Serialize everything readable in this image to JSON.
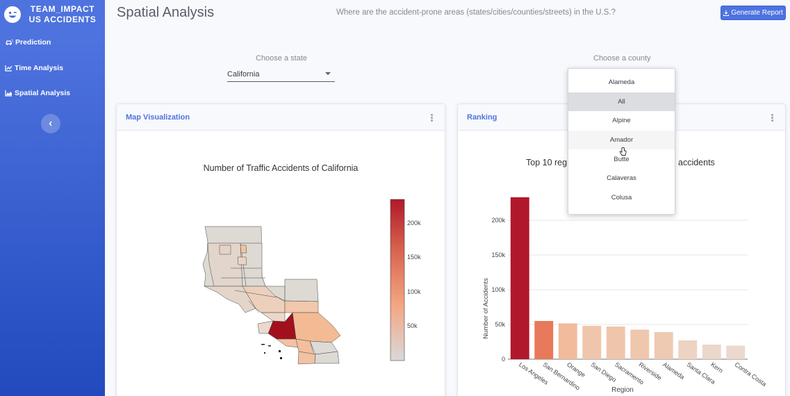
{
  "brand": {
    "line1": "TEAM_IMPACT",
    "line2": "US ACCIDENTS"
  },
  "sidebar": {
    "items": [
      {
        "label": "Prediction"
      },
      {
        "label": "Time Analysis"
      },
      {
        "label": "Spatial Analysis"
      }
    ]
  },
  "header": {
    "title": "Spatial Analysis",
    "question": "Where are the accident-prone areas (states/cities/counties/streets) in the U.S.?",
    "report_button": "Generate Report"
  },
  "state_select": {
    "label": "Choose a state",
    "value": "California"
  },
  "county_select": {
    "label": "Choose a county"
  },
  "county_dropdown": {
    "options": [
      "Alameda",
      "All",
      "Alpine",
      "Amador",
      "Butte",
      "Calaveras",
      "Colusa"
    ],
    "selected": "All",
    "hovered": "Amador"
  },
  "map_card": {
    "title": "Map Visualization",
    "chart_title": "Number of Traffic Accidents of California",
    "colorbar_ticks": [
      "200k",
      "150k",
      "100k",
      "50k"
    ],
    "colorscale": [
      "#d9d9d9",
      "#f4a582",
      "#d6604d",
      "#b2182b"
    ]
  },
  "ranking_card": {
    "title": "Ranking",
    "chart_title_left": "Top 10 reg",
    "chart_title_right": "accidents"
  },
  "chart_data": {
    "type": "bar",
    "categories": [
      "Los Angeles",
      "San Bernardino",
      "Orange",
      "San Diego",
      "Sacramento",
      "Riverside",
      "Alameda",
      "Santa Clara",
      "Kern",
      "Contra Costa"
    ],
    "values": [
      233000,
      55000,
      51500,
      48000,
      47000,
      42500,
      39000,
      27000,
      21000,
      19500
    ],
    "colors": [
      "#b2182b",
      "#e8795a",
      "#f1bb9c",
      "#efc6ab",
      "#efc6ab",
      "#efc7ad",
      "#efcab2",
      "#edd3c2",
      "#ecd7cb",
      "#ecd8cd"
    ],
    "xlabel": "Region",
    "ylabel": "Number of Accidents",
    "ylim": [
      0,
      240000
    ],
    "yticks": [
      0,
      50000,
      100000,
      150000,
      200000
    ],
    "ytick_labels": [
      "0",
      "50k",
      "100k",
      "150k",
      "200k"
    ]
  }
}
